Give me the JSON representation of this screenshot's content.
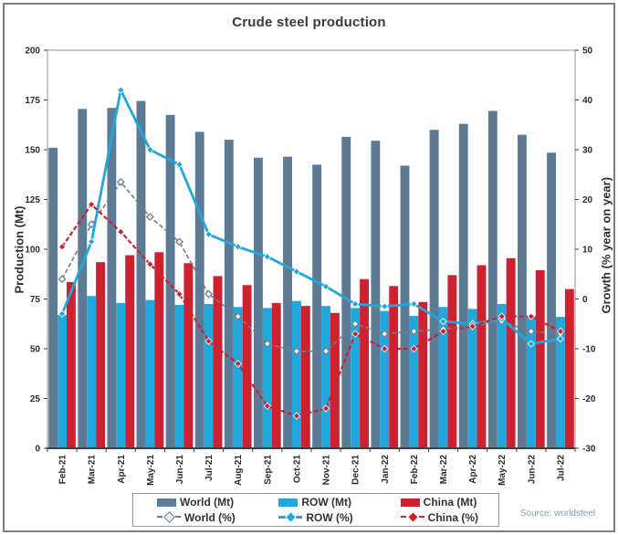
{
  "chart_data": {
    "type": "bar",
    "overlay": "line",
    "title": "Crude steel production",
    "source": "Source: worldsteel",
    "grid": false,
    "legend_position": "bottom",
    "categories": [
      "Feb-21",
      "Mar-21",
      "Apr-21",
      "May-21",
      "Jun-21",
      "Jul-21",
      "Aug-21",
      "Sep-21",
      "Oct-21",
      "Nov-21",
      "Dec-21",
      "Jan-22",
      "Feb-22",
      "Mar-22",
      "Apr-22",
      "May-22",
      "Jun-22",
      "Jul-22"
    ],
    "series": [
      {
        "name": "World (Mt)",
        "axis": "left",
        "color": "#5D7B94",
        "values": [
          151,
          170.5,
          171,
          174.5,
          167.5,
          159,
          155,
          146,
          146.5,
          142.5,
          156.5,
          154.5,
          142,
          160,
          163,
          169.5,
          157.5,
          148.5
        ]
      },
      {
        "name": "ROW (Mt)",
        "axis": "left",
        "color": "#21A7DE",
        "values": [
          67,
          76.5,
          73,
          74.5,
          72,
          72.5,
          71,
          70.5,
          74,
          71.5,
          70.5,
          69,
          66.5,
          71,
          70,
          72.5,
          66.5,
          66
        ]
      },
      {
        "name": "China (Mt)",
        "axis": "left",
        "color": "#CE2130",
        "values": [
          83.5,
          93.5,
          97,
          98.5,
          93,
          86.5,
          82,
          73,
          71.5,
          68,
          85,
          81.5,
          73.5,
          87,
          92,
          95.5,
          89.5,
          80
        ]
      }
    ],
    "line_series": [
      {
        "name": "World (%)",
        "axis": "right",
        "color": "#6D7E8C",
        "style": "dashed",
        "marker": "diamond-open",
        "values": [
          4,
          15,
          23.5,
          16.5,
          11.5,
          1,
          -3.5,
          -9,
          -10.5,
          -10.5,
          -5,
          -7,
          -6.5,
          -6,
          -5.5,
          -4.5,
          -6.5,
          -7
        ]
      },
      {
        "name": "ROW (%)",
        "axis": "right",
        "color": "#21A7DE",
        "style": "solid",
        "marker": "diamond",
        "values": [
          -3,
          11.5,
          42,
          30,
          27,
          13,
          10.5,
          8.5,
          5.5,
          2.5,
          -1,
          -1.5,
          -1,
          -4.5,
          -5,
          -4,
          -9,
          -8
        ]
      },
      {
        "name": "China (%)",
        "axis": "right",
        "color": "#CE2130",
        "style": "dashed",
        "marker": "diamond",
        "values": [
          10.5,
          19,
          13.5,
          7,
          1,
          -8.5,
          -13,
          -21.5,
          -23.5,
          -22,
          -7,
          -10,
          -10,
          -6.5,
          -5.5,
          -3.5,
          -3.5,
          -6.5
        ]
      }
    ],
    "left_axis": {
      "label": "Production (Mt)",
      "min": 0,
      "max": 200,
      "step": 25,
      "ticks": [
        200,
        175,
        150,
        125,
        100,
        75,
        50,
        25,
        0
      ]
    },
    "right_axis": {
      "label": "Growth (% year on year)",
      "min": -30,
      "max": 50,
      "step": 10,
      "ticks": [
        50,
        40,
        30,
        20,
        10,
        0,
        -10,
        -20,
        -30
      ]
    }
  }
}
